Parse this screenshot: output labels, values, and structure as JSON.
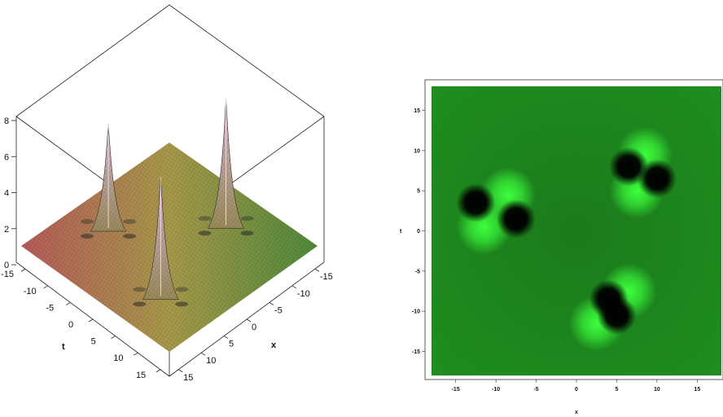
{
  "chart_data": [
    {
      "type": "surface3d",
      "z_ticks": [
        "0",
        "2",
        "4",
        "6",
        "8"
      ],
      "x_ticks": [
        "-15",
        "-10",
        "-5",
        "0",
        "5",
        "10",
        "15"
      ],
      "t_ticks": [
        "-15",
        "-10",
        "-5",
        "0",
        "5",
        "10",
        "15"
      ],
      "xlabel": "x",
      "tlabel": "t",
      "xlim": [
        -17,
        17
      ],
      "tlim": [
        -17,
        17
      ],
      "zlim": [
        0,
        8
      ],
      "base_level": 1,
      "peaks": [
        {
          "x": -10,
          "t": 3,
          "z": 8.5
        },
        {
          "x": 9,
          "t": 7,
          "z": 8.1
        },
        {
          "x": 4,
          "t": -10,
          "z": 7.2
        }
      ],
      "colors": {
        "low_corner": "#b85a5a",
        "mid": "#a89a4a",
        "high_corner": "#4e8a3a",
        "peak": "#d9b8d9"
      }
    },
    {
      "type": "heatmap",
      "x_ticks": [
        "-15",
        "-10",
        "-5",
        "0",
        "5",
        "10",
        "15"
      ],
      "y_ticks": [
        "-15",
        "-10",
        "-5",
        "0",
        "5",
        "10",
        "15"
      ],
      "xlabel": "x",
      "ylabel": "t",
      "xlim": [
        -18,
        18
      ],
      "ylim": [
        -18,
        18
      ],
      "colors": {
        "background": "#1e7a1e",
        "bright": "#3cff3c",
        "dark": "#000000"
      },
      "lumps": [
        {
          "dark": [
            [
              -12.5,
              3.5
            ],
            [
              -7.5,
              1.5
            ]
          ],
          "bright": [
            [
              -11.5,
              0.5
            ],
            [
              -8.5,
              4.5
            ]
          ]
        },
        {
          "dark": [
            [
              4,
              -8.5
            ],
            [
              5,
              -10.5
            ]
          ],
          "bright": [
            [
              2.5,
              -11.5
            ],
            [
              6.5,
              -7.5
            ]
          ]
        },
        {
          "dark": [
            [
              6.5,
              8
            ],
            [
              10,
              6.5
            ]
          ],
          "bright": [
            [
              8.5,
              9.5
            ],
            [
              7.5,
              5
            ]
          ]
        }
      ]
    }
  ]
}
